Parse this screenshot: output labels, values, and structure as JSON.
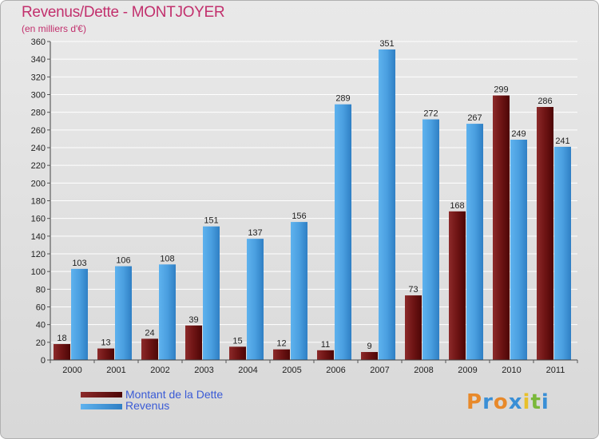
{
  "title": "Revenus/Dette - MONTJOYER",
  "subtitle": "(en milliers d'€)",
  "colors": {
    "dette": "#6b0f0f",
    "revenus": "#4ea3e2",
    "title": "#c2306d",
    "legend_text": "#3a5bd6"
  },
  "legend": {
    "dette_label": "Montant de la Dette",
    "revenus_label": "Revenus"
  },
  "logo": {
    "text": "Proxiti"
  },
  "chart_data": {
    "type": "bar",
    "title": "Revenus/Dette - MONTJOYER",
    "ylabel": "(en milliers d'€)",
    "xlabel": "",
    "categories": [
      "2000",
      "2001",
      "2002",
      "2003",
      "2004",
      "2005",
      "2006",
      "2007",
      "2008",
      "2009",
      "2010",
      "2011"
    ],
    "series": [
      {
        "name": "Montant de la Dette",
        "values": [
          18,
          13,
          24,
          39,
          15,
          12,
          11,
          9,
          73,
          168,
          299,
          286
        ]
      },
      {
        "name": "Revenus",
        "values": [
          103,
          106,
          108,
          151,
          137,
          156,
          289,
          351,
          272,
          267,
          249,
          241
        ]
      }
    ],
    "ylim": [
      0,
      360
    ],
    "yticks": [
      0,
      20,
      40,
      60,
      80,
      100,
      120,
      140,
      160,
      180,
      200,
      220,
      240,
      260,
      280,
      300,
      320,
      340,
      360
    ],
    "grid": true,
    "legend_position": "bottom-left"
  }
}
